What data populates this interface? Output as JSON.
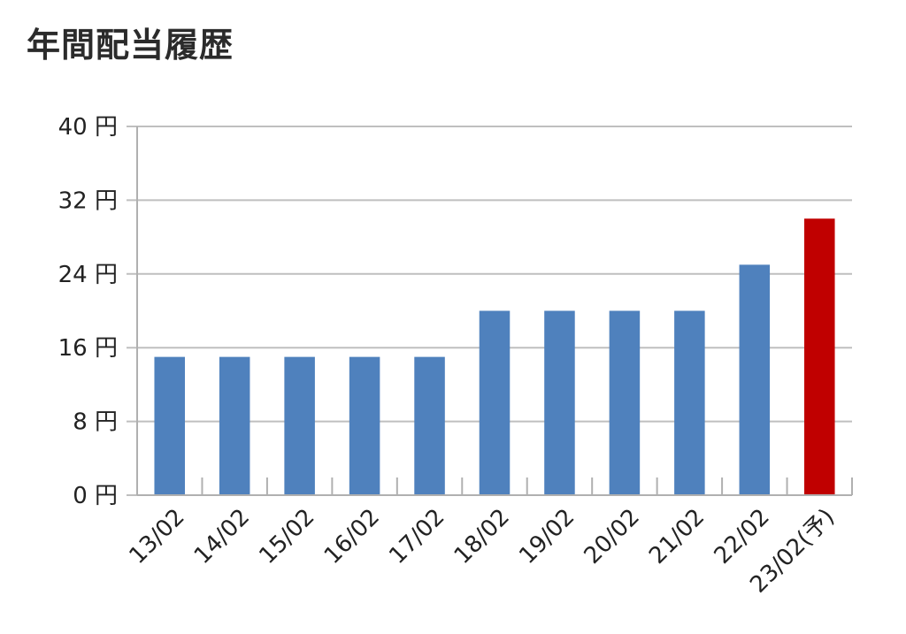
{
  "chart_data": {
    "type": "bar",
    "title": "年間配当履歴",
    "xlabel": "",
    "ylabel": "",
    "categories": [
      "13/02",
      "14/02",
      "15/02",
      "16/02",
      "17/02",
      "18/02",
      "19/02",
      "20/02",
      "21/02",
      "22/02",
      "23/02(予)"
    ],
    "values": [
      15,
      15,
      15,
      15,
      15,
      20,
      20,
      20,
      20,
      25,
      30
    ],
    "ylim": [
      0,
      40
    ],
    "yticks": [
      0,
      8,
      16,
      24,
      32,
      40
    ],
    "ytick_unit": "円",
    "grid": true,
    "legend": "none",
    "colors": {
      "actual": "#4f81bd",
      "forecast": "#c00000",
      "grid": "#bfbfbf",
      "axis": "#b0b0b0"
    },
    "forecast_index": 10
  }
}
